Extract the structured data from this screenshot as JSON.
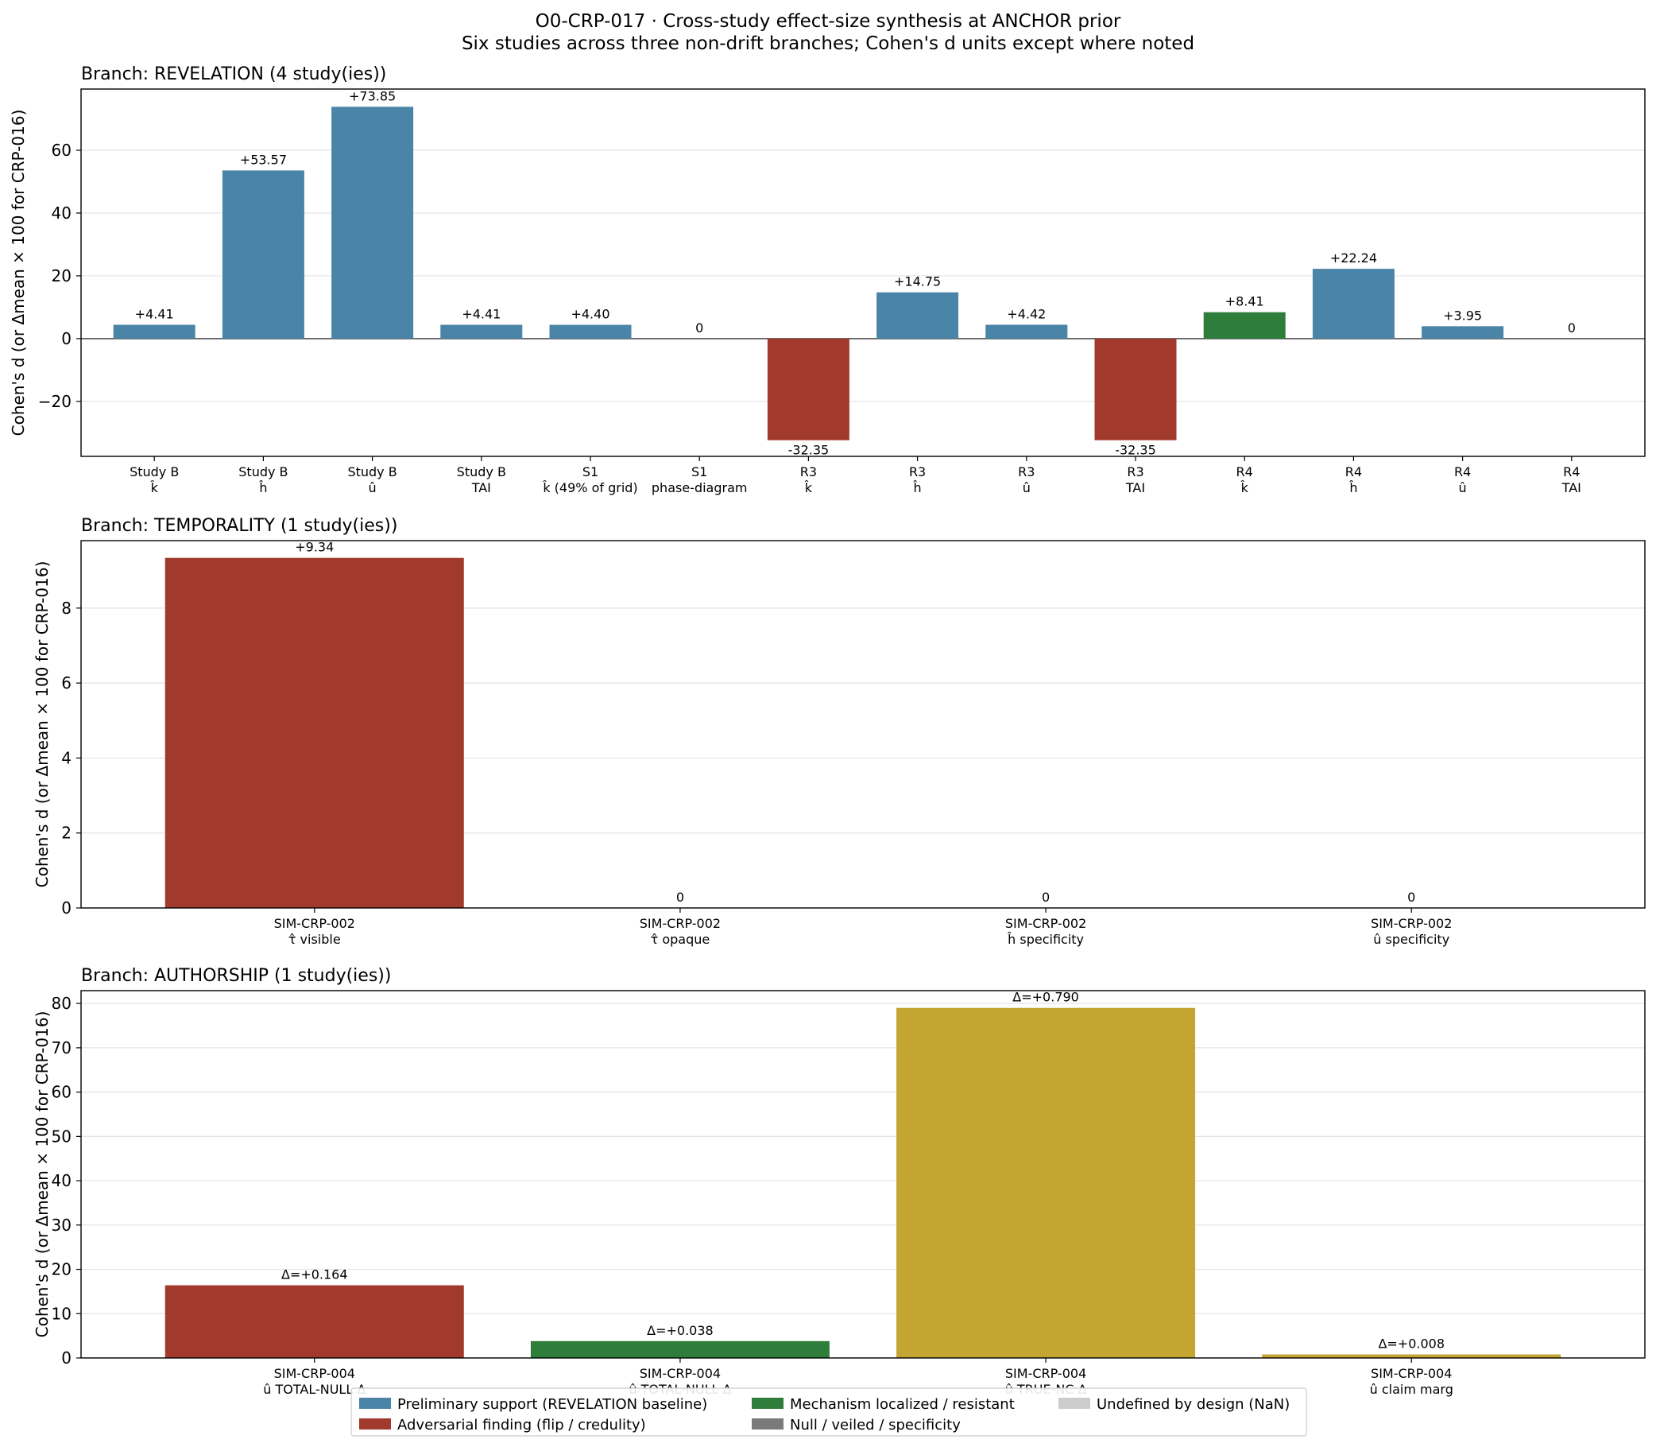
{
  "figure": {
    "title_line1": "O0-CRP-017 · Cross-study effect-size synthesis at ANCHOR prior",
    "title_line2": "Six studies across three non-drift branches; Cohen's d units except where noted"
  },
  "colors": {
    "support": "#4a84a6",
    "adversarial": "#a13a2c",
    "mechanism": "#2e7d3b",
    "null": "#7a7a7a",
    "undefined": "#cccccc",
    "authorship_true_nc": "#c4a531"
  },
  "legend": [
    {
      "label": "Preliminary support (REVELATION baseline)",
      "color": "#4a84a6"
    },
    {
      "label": "Adversarial finding (flip / credulity)",
      "color": "#a13a2c"
    },
    {
      "label": "Mechanism localized / resistant",
      "color": "#2e7d3b"
    },
    {
      "label": "Null / veiled / specificity",
      "color": "#7a7a7a"
    },
    {
      "label": "Undefined by design (NaN)",
      "color": "#cccccc"
    }
  ],
  "chart_data": [
    {
      "type": "bar",
      "title": "Branch: REVELATION   (4 study(ies))",
      "ylabel": "Cohen's d (or Δmean × 100 for CRP-016)",
      "ylim": [
        -37.5,
        79.5
      ],
      "yticks": [
        -20,
        0,
        20,
        40,
        60
      ],
      "grid": "y",
      "categories": [
        [
          "Study B",
          "k̂"
        ],
        [
          "Study B",
          "ĥ"
        ],
        [
          "Study B",
          "û"
        ],
        [
          "Study B",
          "TAI"
        ],
        [
          "S1",
          "k̂ (49% of grid)"
        ],
        [
          "S1",
          "phase-diagram"
        ],
        [
          "R3",
          "k̂"
        ],
        [
          "R3",
          "ĥ"
        ],
        [
          "R3",
          "û"
        ],
        [
          "R3",
          "TAI"
        ],
        [
          "R4",
          "k̂"
        ],
        [
          "R4",
          "ĥ"
        ],
        [
          "R4",
          "û"
        ],
        [
          "R4",
          "TAI"
        ]
      ],
      "values": [
        4.41,
        53.57,
        73.85,
        4.41,
        4.4,
        0,
        -32.35,
        14.75,
        4.42,
        -32.35,
        8.41,
        22.24,
        3.95,
        0
      ],
      "labels": [
        "+4.41",
        "+53.57",
        "+73.85",
        "+4.41",
        "+4.40",
        "0",
        "-32.35",
        "+14.75",
        "+4.42",
        "-32.35",
        "+8.41",
        "+22.24",
        "+3.95",
        "0"
      ],
      "colors": [
        "#4a84a6",
        "#4a84a6",
        "#4a84a6",
        "#4a84a6",
        "#4a84a6",
        "#4a84a6",
        "#a13a2c",
        "#4a84a6",
        "#4a84a6",
        "#a13a2c",
        "#2e7d3b",
        "#4a84a6",
        "#4a84a6",
        "#4a84a6"
      ]
    },
    {
      "type": "bar",
      "title": "Branch: TEMPORALITY   (1 study(ies))",
      "ylabel": "Cohen's d (or Δmean × 100 for CRP-016)",
      "ylim": [
        0,
        9.8
      ],
      "yticks": [
        0,
        2,
        4,
        6,
        8
      ],
      "grid": "y",
      "categories": [
        [
          "SIM-CRP-002",
          "τ̂ visible"
        ],
        [
          "SIM-CRP-002",
          "τ̂ opaque"
        ],
        [
          "SIM-CRP-002",
          "ĥ specificity"
        ],
        [
          "SIM-CRP-002",
          "û specificity"
        ]
      ],
      "values": [
        9.34,
        0,
        0,
        0
      ],
      "labels": [
        "+9.34",
        "0",
        "0",
        "0"
      ],
      "colors": [
        "#a13a2c",
        "#7a7a7a",
        "#7a7a7a",
        "#7a7a7a"
      ]
    },
    {
      "type": "bar",
      "title": "Branch: AUTHORSHIP   (1 study(ies))",
      "ylabel": "Cohen's d (or Δmean × 100 for CRP-016)",
      "ylim": [
        0,
        82.9
      ],
      "yticks": [
        0,
        10,
        20,
        30,
        40,
        50,
        60,
        70,
        80
      ],
      "grid": "y",
      "categories": [
        [
          "SIM-CRP-004",
          "û TOTAL-NULL Δ"
        ],
        [
          "SIM-CRP-004",
          "û TOTAL-NULL Δ"
        ],
        [
          "SIM-CRP-004",
          "û TRUE-NC Δ"
        ],
        [
          "SIM-CRP-004",
          "û claim marg"
        ]
      ],
      "values": [
        16.4,
        3.8,
        79.0,
        0.8
      ],
      "labels": [
        "Δ=+0.164",
        "Δ=+0.038",
        "Δ=+0.790",
        "Δ=+0.008"
      ],
      "colors": [
        "#a13a2c",
        "#2e7d3b",
        "#c4a531",
        "#c4a531"
      ]
    }
  ]
}
